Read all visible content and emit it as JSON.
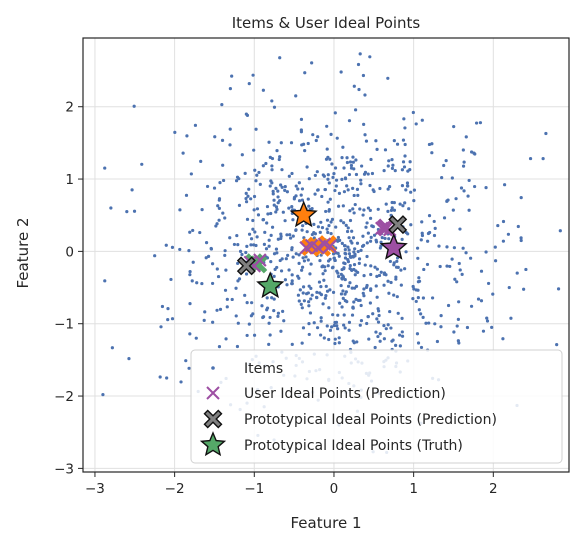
{
  "chart_data": {
    "type": "scatter",
    "title": "Items & User Ideal Points",
    "xlabel": "Feature 1",
    "ylabel": "Feature 2",
    "xlim": [
      -3.15,
      2.95
    ],
    "ylim": [
      -3.05,
      2.95
    ],
    "xticks": [
      -3,
      -2,
      -1,
      0,
      1,
      2
    ],
    "yticks": [
      -3,
      -2,
      -1,
      0,
      1,
      2
    ],
    "xtick_labels": [
      "−3",
      "−2",
      "−1",
      "0",
      "1",
      "2"
    ],
    "ytick_labels": [
      "−3",
      "−2",
      "−1",
      "0",
      "1",
      "2"
    ],
    "grid": true,
    "legend_position": "lower-right",
    "items": {
      "name": "Items",
      "color": "#4c72b0",
      "count": 1000,
      "mean": [
        0,
        0
      ],
      "std": [
        0.95,
        0.95
      ],
      "sample_points": [
        [
          -2.9,
          -1.98
        ],
        [
          2.66,
          1.63
        ],
        [
          0.45,
          2.69
        ],
        [
          0.09,
          2.48
        ],
        [
          -0.48,
          2.15
        ],
        [
          -1.3,
          2.25
        ],
        [
          -2.8,
          0.6
        ],
        [
          -2.6,
          0.55
        ],
        [
          2.35,
          0.15
        ],
        [
          2.2,
          -0.5
        ],
        [
          -2.1,
          -1.75
        ],
        [
          2.3,
          -0.3
        ]
      ]
    },
    "series": [
      {
        "name": "User Ideal Points (Prediction)",
        "marker": "x",
        "color": "#9d4fa3",
        "points": [
          [
            -1.05,
            -0.15
          ],
          [
            -1.0,
            -0.2
          ],
          [
            -0.93,
            -0.12
          ],
          [
            -0.35,
            0.05
          ],
          [
            -0.28,
            0.08
          ],
          [
            -0.2,
            0.05
          ],
          [
            -0.12,
            0.1
          ],
          [
            -0.05,
            0.07
          ],
          [
            0.6,
            0.32
          ],
          [
            0.65,
            0.35
          ],
          [
            0.7,
            0.3
          ]
        ]
      },
      {
        "name": "Prototypical Ideal Points (Prediction)",
        "marker": "X",
        "color": "#808080",
        "points": [
          [
            -1.1,
            -0.2
          ],
          [
            0.8,
            0.37
          ]
        ]
      },
      {
        "name": "Prototypical Ideal Points (Truth)",
        "marker": "star",
        "color": "#55a868",
        "points": [
          [
            -0.8,
            -0.48
          ]
        ]
      }
    ],
    "cluster_colors": [
      "#55a868",
      "#ff7f0e",
      "#9d4fa3"
    ],
    "truth_star_points": [
      {
        "x": -0.8,
        "y": -0.48,
        "color": "#55a868"
      },
      {
        "x": -0.38,
        "y": 0.5,
        "color": "#ff7f0e"
      },
      {
        "x": 0.75,
        "y": 0.05,
        "color": "#9d4fa3"
      }
    ],
    "cluster_cross_points": [
      {
        "x": -1.0,
        "y": -0.15,
        "color": "#55a868"
      },
      {
        "x": -0.95,
        "y": -0.18,
        "color": "#55a868"
      },
      {
        "x": -0.3,
        "y": 0.06,
        "color": "#ff7f0e"
      },
      {
        "x": -0.22,
        "y": 0.08,
        "color": "#ff7f0e"
      },
      {
        "x": -0.15,
        "y": 0.05,
        "color": "#ff7f0e"
      },
      {
        "x": -0.08,
        "y": 0.1,
        "color": "#ff7f0e"
      },
      {
        "x": 0.65,
        "y": 0.33,
        "color": "#9d4fa3"
      }
    ],
    "legend": [
      "Items",
      "User Ideal Points (Prediction)",
      "Prototypical Ideal Points (Prediction)",
      "Prototypical Ideal Points (Truth)"
    ]
  }
}
